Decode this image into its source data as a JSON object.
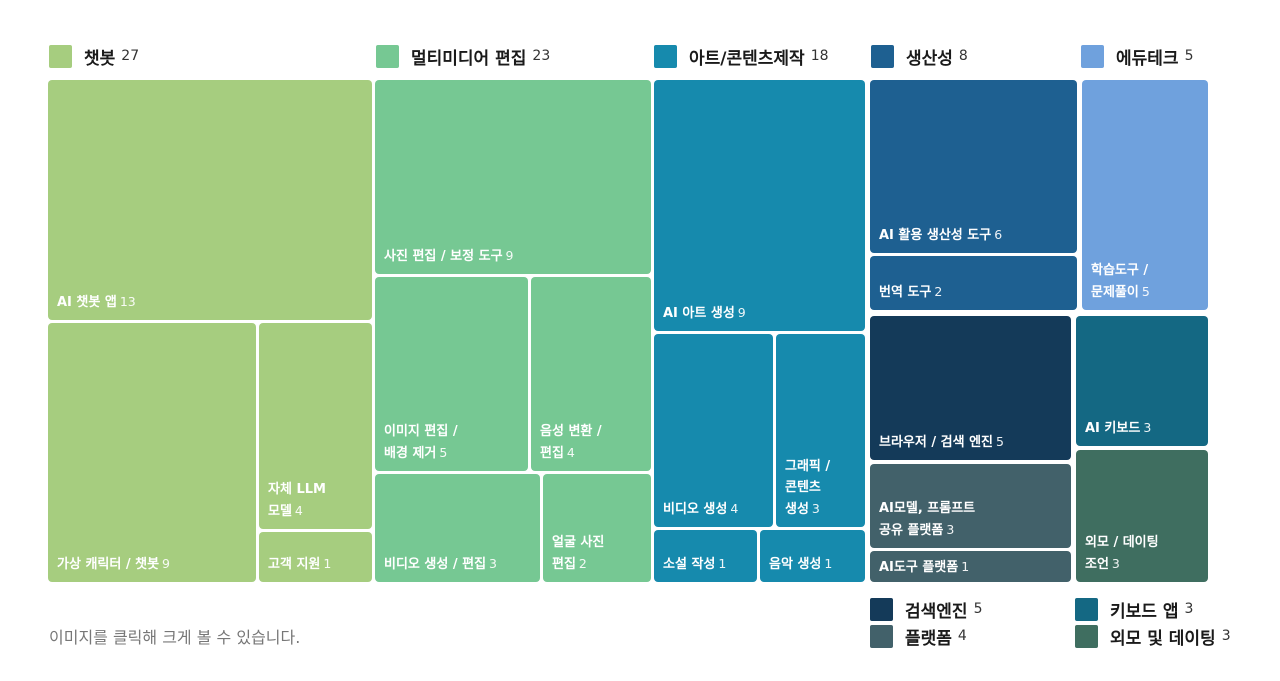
{
  "categories": [
    {
      "name": "챗봇",
      "count": "27",
      "color": "#a6cd7f"
    },
    {
      "name": "멀티미디어 편집",
      "count": "23",
      "color": "#76c893"
    },
    {
      "name": "아트/콘텐츠제작",
      "count": "18",
      "color": "#168aad"
    },
    {
      "name": "생산성",
      "count": "8",
      "color": "#1e6091"
    },
    {
      "name": "에듀테크",
      "count": "5",
      "color": "#6fa1dd"
    }
  ],
  "subcategories": [
    {
      "name": "검색엔진",
      "count": "5",
      "color": "#143a59"
    },
    {
      "name": "플랫폼",
      "count": "4",
      "color": "#42616a"
    },
    {
      "name": "키보드 앱",
      "count": "3",
      "color": "#146883"
    },
    {
      "name": "외모 및 데이팅",
      "count": "3",
      "color": "#3f6e60"
    }
  ],
  "chart_data": {
    "type": "treemap",
    "groups": [
      {
        "name": "챗봇",
        "value": 27,
        "items": [
          {
            "label": "AI 챗봇 앱",
            "value": 13
          },
          {
            "label": "가상 캐릭터 / 챗봇",
            "value": 9
          },
          {
            "label": "자체 LLM\n모델",
            "value": 4
          },
          {
            "label": "고객 지원",
            "value": 1
          }
        ]
      },
      {
        "name": "멀티미디어 편집",
        "value": 23,
        "items": [
          {
            "label": "사진 편집 / 보정 도구",
            "value": 9
          },
          {
            "label": "이미지 편집 /\n배경 제거",
            "value": 5
          },
          {
            "label": "음성 변환 /\n편집",
            "value": 4
          },
          {
            "label": "비디오 생성 / 편집",
            "value": 3
          },
          {
            "label": "얼굴 사진\n편집",
            "value": 2
          }
        ]
      },
      {
        "name": "아트/콘텐츠제작",
        "value": 18,
        "items": [
          {
            "label": "AI 아트 생성",
            "value": 9
          },
          {
            "label": "비디오 생성",
            "value": 4
          },
          {
            "label": "그래픽 /\n콘텐츠\n생성",
            "value": 3
          },
          {
            "label": "소설 작성",
            "value": 1
          },
          {
            "label": "음악 생성",
            "value": 1
          }
        ]
      },
      {
        "name": "생산성",
        "value": 8,
        "items": [
          {
            "label": "AI 활용 생산성 도구",
            "value": 6
          },
          {
            "label": "번역 도구",
            "value": 2
          }
        ]
      },
      {
        "name": "에듀테크",
        "value": 5,
        "items": [
          {
            "label": "학습도구 /\n문제풀이",
            "value": 5
          }
        ]
      },
      {
        "name": "검색엔진",
        "value": 5,
        "items": [
          {
            "label": "브라우저 / 검색 엔진",
            "value": 5
          }
        ]
      },
      {
        "name": "플랫폼",
        "value": 4,
        "items": [
          {
            "label": "AI모델, 프롬프트\n공유 플랫폼",
            "value": 3
          },
          {
            "label": "AI도구 플랫폼",
            "value": 1
          }
        ]
      },
      {
        "name": "키보드 앱",
        "value": 3,
        "items": [
          {
            "label": "AI 키보드",
            "value": 3
          }
        ]
      },
      {
        "name": "외모 및 데이팅",
        "value": 3,
        "items": [
          {
            "label": "외모 / 데이팅\n조언",
            "value": 3
          }
        ]
      }
    ]
  },
  "note": "이미지를 클릭해 크게 볼 수 있습니다."
}
